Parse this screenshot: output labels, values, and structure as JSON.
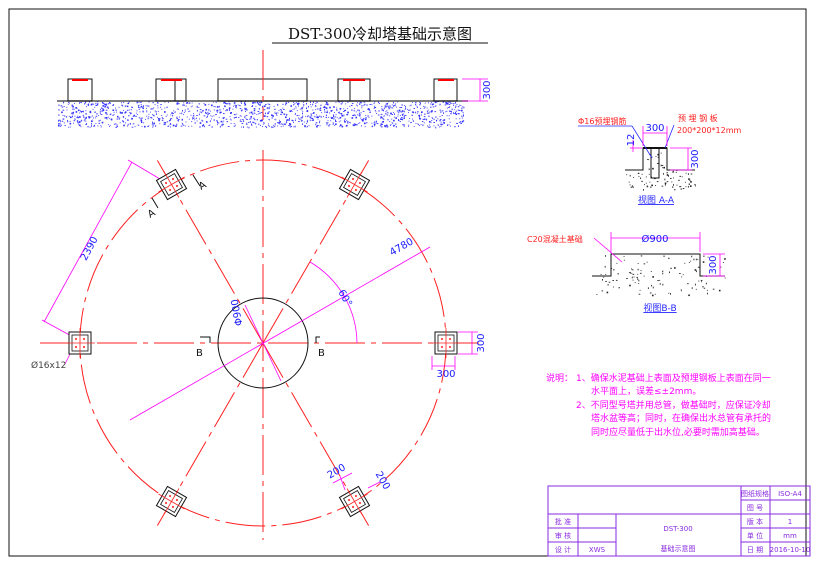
{
  "title": "DST-300冷却塔基础示意图",
  "elevation": {
    "height_dim": "300"
  },
  "plan": {
    "radius_dim": "4780",
    "angle_dim": "60°",
    "pad_spacing_dim": "2390",
    "center_diameter_dim": "Φ900",
    "rebar_label": "Ø16x12",
    "pad_width_dim": "300",
    "pad_dims": [
      "200",
      "200"
    ],
    "section_a": "A",
    "section_b": "B"
  },
  "view_aa": {
    "rebar_label": "Φ16预埋钢筋",
    "plate_label": "预 埋 钢 板",
    "plate_spec": "200*200*12mm",
    "width_dim": "300",
    "plate_thk_dim": "12",
    "height_dim": "300",
    "caption": "视图 A-A"
  },
  "view_bb": {
    "concrete_label": "C20混凝土基础",
    "diameter_dim": "Ø900",
    "height_dim": "300",
    "caption": "视图B-B"
  },
  "notes": {
    "heading": "说明：",
    "lines": [
      "1、确保水泥基础上表面及预埋钢板上表面在同一",
      "水平面上，误差≤±2mm。",
      "2、不同型号塔并用总管，做基础时，应保证冷却",
      "塔水盆等高；同时，在确保出水总管有承托的",
      "同时应尽量低于出水位,必要时需加高基础。"
    ]
  },
  "title_block": {
    "approve": "批 准",
    "review": "审 核",
    "design": "设 计",
    "draw": "绘 图",
    "designer": "XWS",
    "drafter": "XWS",
    "model": "DST-300",
    "drawing_name": "基础示意图",
    "sheet_size_label": "图纸规格",
    "sheet_size": "ISO-A4",
    "drawing_no_label": "图 号",
    "drawing_no": "",
    "version_label": "版 本",
    "version": "1",
    "unit_label": "单 位",
    "unit": "mm",
    "scale_label": "比 例",
    "scale": "",
    "date_label": "日 期",
    "date": "2016-10-10"
  },
  "colors": {
    "centerline": "#ff2020",
    "dimension": "#ff00ff",
    "dim_text": "#1a1aff",
    "title_block": "#8a2be2"
  }
}
